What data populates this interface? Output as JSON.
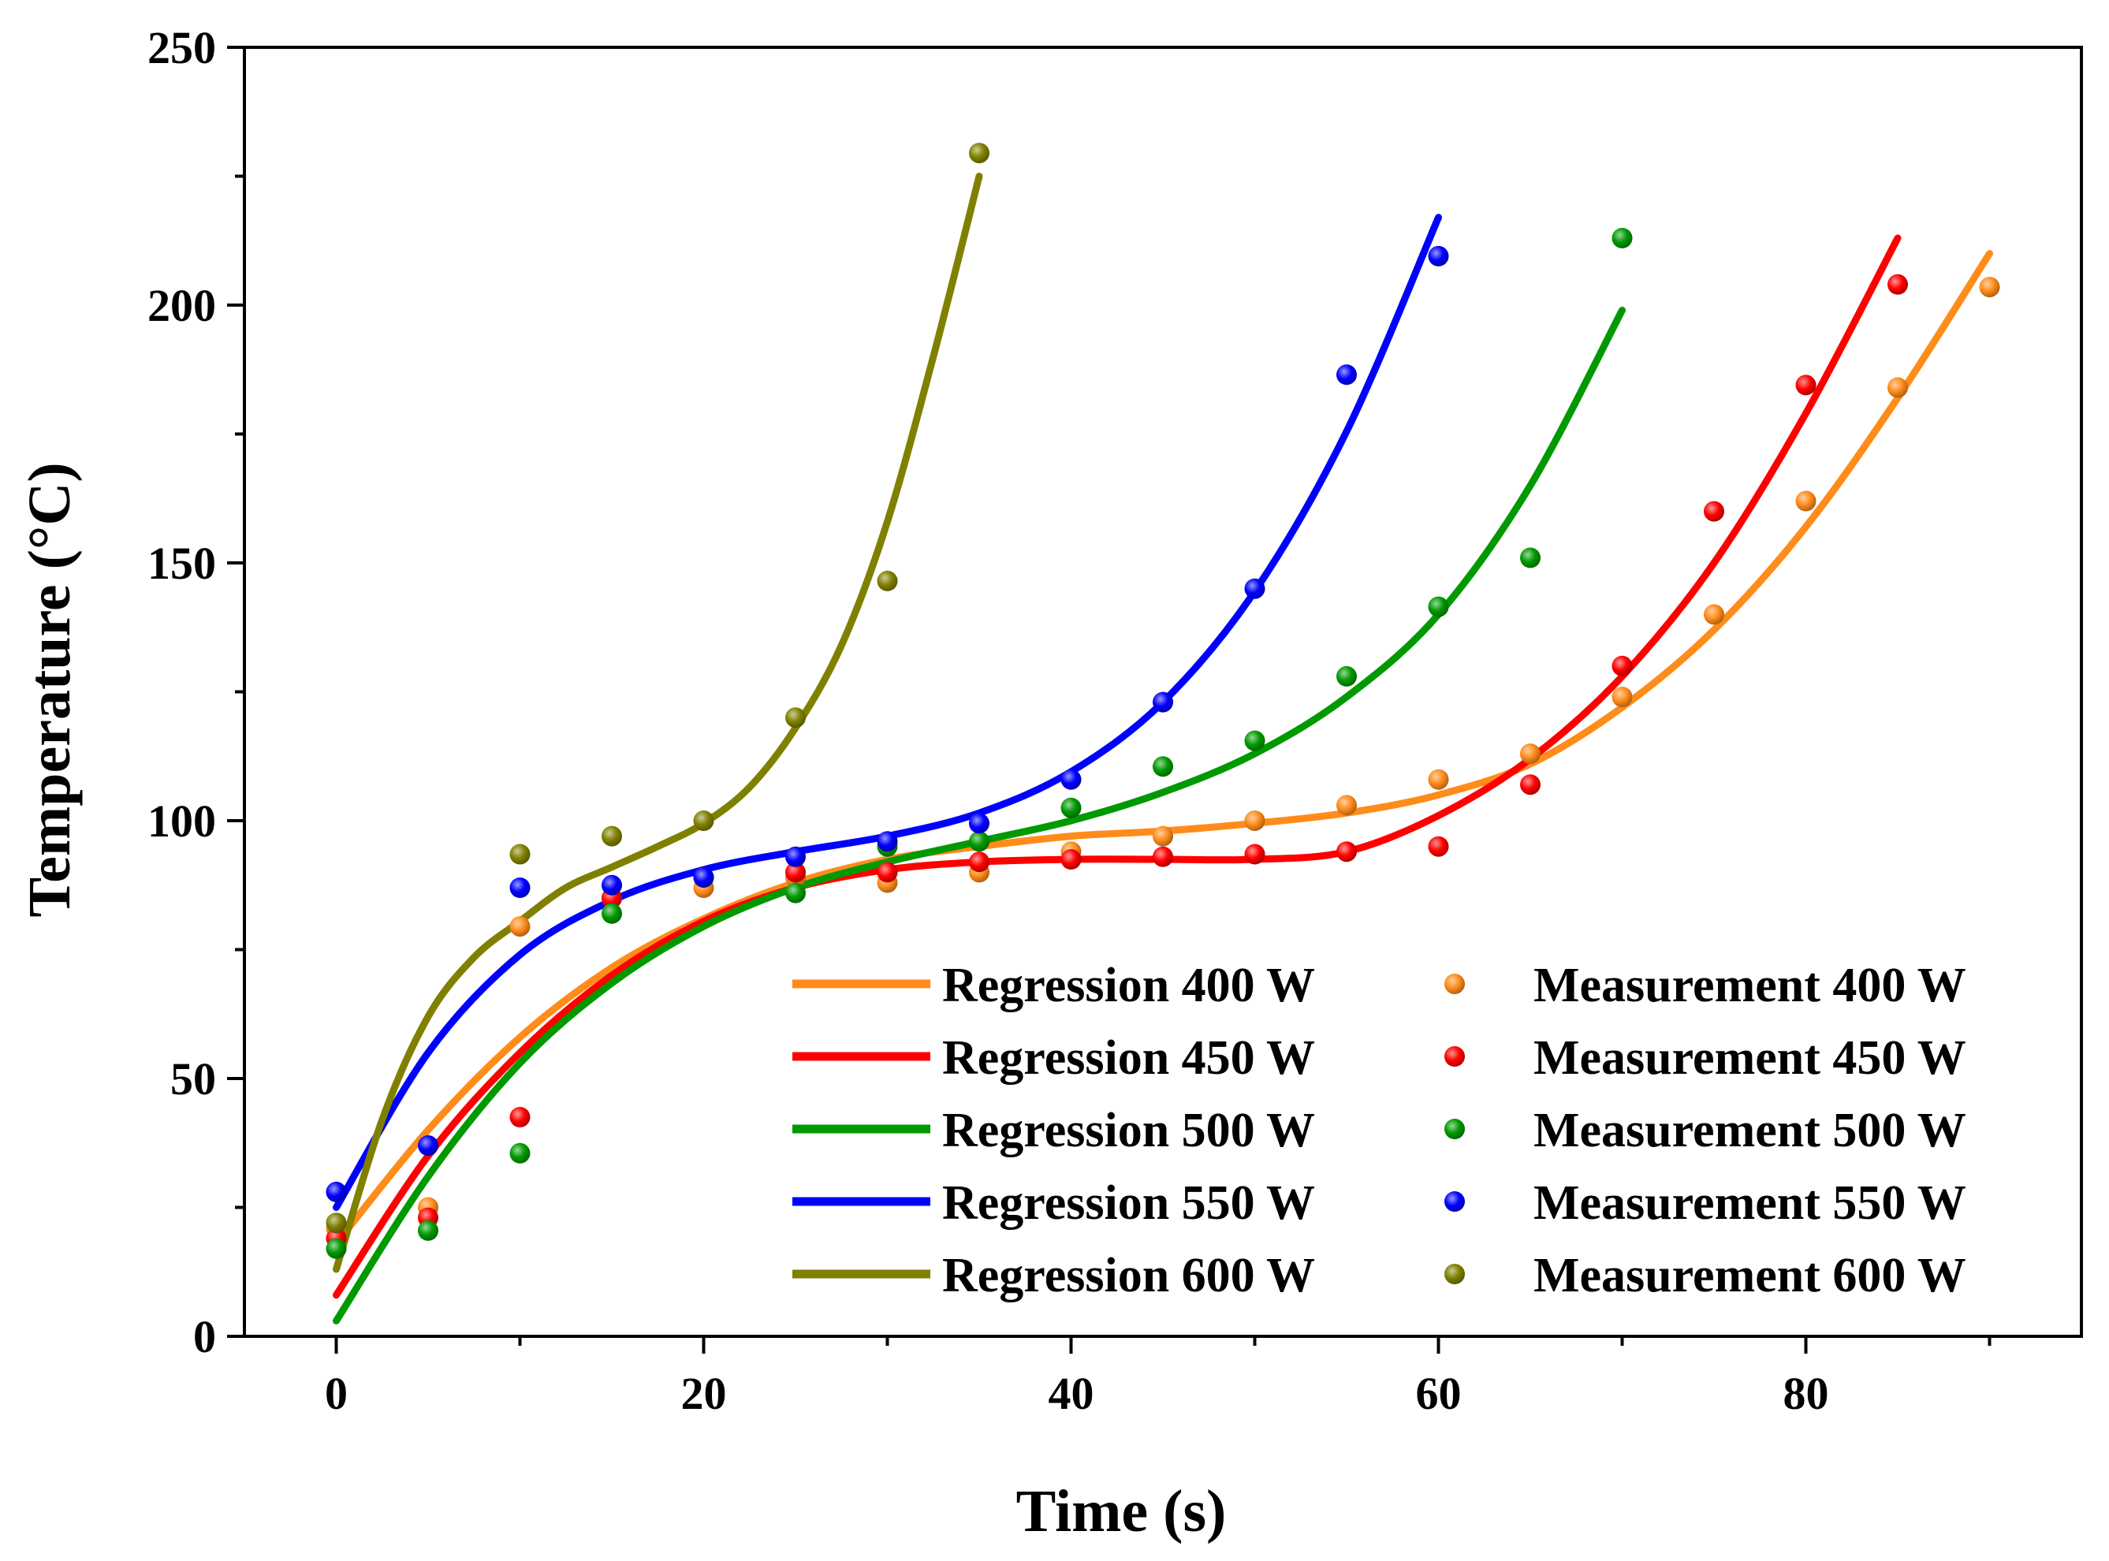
{
  "chart_data": {
    "type": "scatter",
    "title": "",
    "xlabel": "Time (s)",
    "ylabel": "Temperature (°C)",
    "xlim": [
      -5,
      95
    ],
    "ylim": [
      0,
      250
    ],
    "xticks": [
      0,
      20,
      40,
      60,
      80
    ],
    "yticks": [
      0,
      50,
      100,
      150,
      200,
      250
    ],
    "legend_position": "bottom-right",
    "grid": false,
    "series": [
      {
        "name": "400 W",
        "color": "#ff8c1a",
        "regression_label": "Regression 400 W",
        "measurement_label": "Measurement 400 W",
        "measurement": {
          "x": [
            0,
            5,
            10,
            15,
            20,
            25,
            30,
            35,
            40,
            45,
            50,
            55,
            60,
            65,
            70,
            75,
            80,
            85,
            90
          ],
          "y": [
            21,
            25,
            79.5,
            85,
            87,
            89,
            88,
            90,
            94,
            97,
            100,
            103,
            108,
            113,
            124,
            140,
            162,
            184,
            203.5
          ]
        },
        "regression": {
          "x": [
            0,
            5,
            10,
            15,
            20,
            25,
            30,
            35,
            40,
            45,
            50,
            55,
            60,
            65,
            70,
            75,
            80,
            85,
            90
          ],
          "y": [
            18,
            40,
            58,
            71.5,
            81,
            88,
            92.5,
            95,
            97,
            98,
            99.5,
            101.5,
            105,
            111,
            122,
            137,
            157,
            182,
            210
          ]
        }
      },
      {
        "name": "450 W",
        "color": "#ff0000",
        "regression_label": "Regression 450 W",
        "measurement_label": "Measurement 450 W",
        "measurement": {
          "x": [
            0,
            5,
            10,
            15,
            20,
            25,
            30,
            35,
            40,
            45,
            50,
            55,
            60,
            65,
            70,
            75,
            80,
            85
          ],
          "y": [
            19,
            23,
            42.5,
            85,
            89,
            90,
            90,
            92,
            92.5,
            93,
            93.5,
            94,
            95,
            107,
            130,
            160,
            184.5,
            204
          ]
        },
        "regression": {
          "x": [
            0,
            5,
            10,
            15,
            20,
            25,
            30,
            35,
            40,
            45,
            50,
            55,
            60,
            65,
            70,
            75,
            80,
            85
          ],
          "y": [
            8,
            35,
            55,
            70,
            80.5,
            87,
            90.5,
            92,
            92.5,
            92.5,
            92.5,
            94,
            101,
            112,
            128,
            150,
            179,
            213
          ]
        }
      },
      {
        "name": "500 W",
        "color": "#009900",
        "regression_label": "Regression 500 W",
        "measurement_label": "Measurement 500 W",
        "measurement": {
          "x": [
            0,
            5,
            10,
            15,
            20,
            25,
            30,
            35,
            40,
            45,
            50,
            55,
            60,
            65,
            70
          ],
          "y": [
            17,
            20.5,
            35.5,
            82,
            89,
            86,
            95,
            96,
            102.5,
            110.5,
            115.5,
            128,
            141.5,
            151,
            213
          ]
        },
        "regression": {
          "x": [
            0,
            5,
            10,
            15,
            20,
            25,
            30,
            35,
            40,
            45,
            50,
            55,
            60,
            65,
            70
          ],
          "y": [
            3,
            31,
            53,
            68.5,
            79.5,
            87,
            92,
            96,
            100,
            105.5,
            113,
            124,
            140,
            165,
            199
          ]
        }
      },
      {
        "name": "550 W",
        "color": "#0000ff",
        "regression_label": "Regression 550 W",
        "measurement_label": "Measurement 550 W",
        "measurement": {
          "x": [
            0,
            5,
            10,
            15,
            20,
            25,
            30,
            35,
            40,
            45,
            50,
            55,
            60
          ],
          "y": [
            28,
            37,
            87,
            87.5,
            89,
            93,
            96,
            99.5,
            108,
            123,
            145,
            186.5,
            209.5
          ]
        },
        "regression": {
          "x": [
            0,
            5,
            10,
            15,
            20,
            25,
            30,
            35,
            40,
            45,
            50,
            55,
            60
          ],
          "y": [
            25,
            55,
            74,
            84.5,
            90.5,
            94,
            97,
            101.5,
            109.5,
            123,
            144.5,
            175.5,
            217
          ]
        }
      },
      {
        "name": "600 W",
        "color": "#808000",
        "regression_label": "Regression 600 W",
        "measurement_label": "Measurement 600 W",
        "measurement": {
          "x": [
            0,
            10,
            15,
            20,
            25,
            30,
            35
          ],
          "y": [
            22,
            93.5,
            97,
            100,
            120,
            146.5,
            229.5
          ]
        },
        "regression": {
          "x": [
            0,
            2.5,
            5,
            7.5,
            10,
            12.5,
            15,
            17.5,
            20,
            22.5,
            25,
            27.5,
            30,
            32.5,
            35
          ],
          "y": [
            13,
            42,
            62,
            73.5,
            80.5,
            87,
            91,
            95,
            99.5,
            106.5,
            118,
            134,
            158,
            190,
            225
          ]
        }
      }
    ]
  }
}
